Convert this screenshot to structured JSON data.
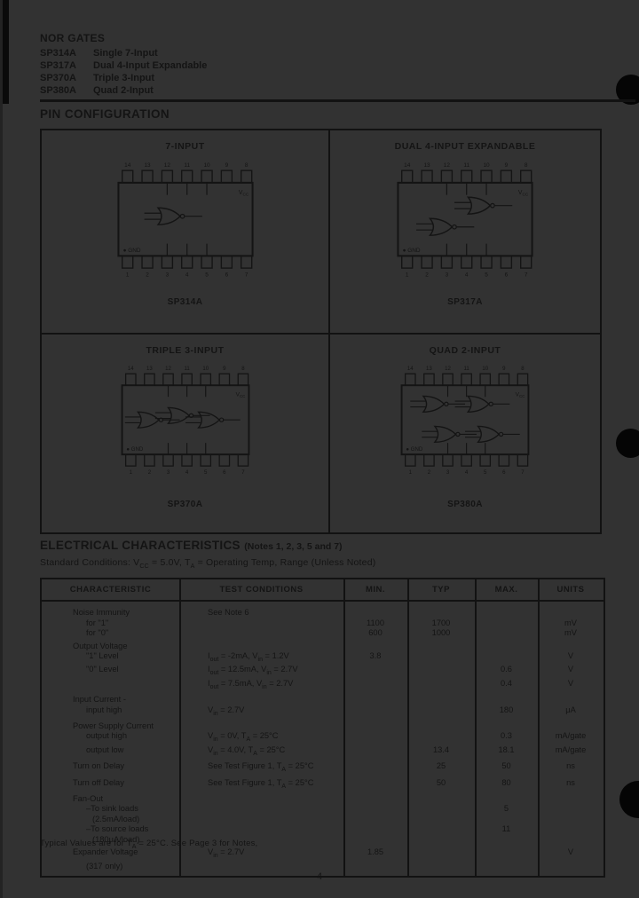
{
  "header": {
    "section_title": "NOR GATES",
    "parts": [
      {
        "number": "SP314A",
        "description": "Single 7-Input"
      },
      {
        "number": "SP317A",
        "description": "Dual 4-Input Expandable"
      },
      {
        "number": "SP370A",
        "description": "Triple 3-Input"
      },
      {
        "number": "SP380A",
        "description": "Quad 2-Input"
      }
    ]
  },
  "pin_configuration": {
    "title": "PIN CONFIGURATION",
    "diagrams": [
      {
        "title": "7-INPUT",
        "part_number": "SP314A",
        "gate_count": 1,
        "top_pins": [
          "14",
          "13",
          "12",
          "11",
          "10",
          "9",
          "8"
        ],
        "bottom_pins": [
          "1",
          "2",
          "3",
          "4",
          "5",
          "6",
          "7"
        ],
        "power_label": "V_{CC}",
        "ground_label": "GND"
      },
      {
        "title": "DUAL 4-INPUT EXPANDABLE",
        "part_number": "SP317A",
        "gate_count": 2,
        "top_pins": [
          "14",
          "13",
          "12",
          "11",
          "10",
          "9",
          "8"
        ],
        "bottom_pins": [
          "1",
          "2",
          "3",
          "4",
          "5",
          "6",
          "7"
        ],
        "power_label": "V_{CC}",
        "ground_label": "GND"
      },
      {
        "title": "TRIPLE 3-INPUT",
        "part_number": "SP370A",
        "gate_count": 3,
        "top_pins": [
          "14",
          "13",
          "12",
          "11",
          "10",
          "9",
          "8"
        ],
        "bottom_pins": [
          "1",
          "2",
          "3",
          "4",
          "5",
          "6",
          "7"
        ],
        "power_label": "V_{CC}",
        "ground_label": "GND"
      },
      {
        "title": "QUAD 2-INPUT",
        "part_number": "SP380A",
        "gate_count": 4,
        "top_pins": [
          "14",
          "13",
          "12",
          "11",
          "10",
          "9",
          "8"
        ],
        "bottom_pins": [
          "1",
          "2",
          "3",
          "4",
          "5",
          "6",
          "7"
        ],
        "power_label": "V_{CC}",
        "ground_label": "GND"
      }
    ]
  },
  "electrical": {
    "title": "ELECTRICAL CHARACTERISTICS",
    "title_notes": "(Notes 1, 2, 3, 5 and 7)",
    "conditions": "Standard Conditions:  V_{CC} = 5.0V, T_{A} = Operating Temp, Range (Unless Noted)",
    "table": {
      "headers": [
        "CHARACTERISTIC",
        "TEST CONDITIONS",
        "MIN.",
        "TYP",
        "MAX.",
        "UNITS"
      ],
      "rows": [
        {
          "characteristic": "Noise Immunity",
          "conditions": "See Note 6",
          "group": true
        },
        {
          "characteristic": "for \"1\"",
          "indent": 1,
          "min": "1100",
          "typ": "1700",
          "units": "mV"
        },
        {
          "characteristic": "for \"0\"",
          "indent": 1,
          "min": "600",
          "typ": "1000",
          "units": "mV"
        },
        {
          "characteristic": "Output Voltage",
          "group": true
        },
        {
          "characteristic": "\"1\" Level",
          "indent": 1,
          "conditions": "I_{out} = -2mA, V_{in} = 1.2V",
          "min": "3.8",
          "units": "V"
        },
        {
          "characteristic": "\"0\" Level",
          "indent": 1,
          "conditions": "I_{out} = 12.5mA, V_{in} = 2.7V",
          "max": "0.6",
          "units": "V"
        },
        {
          "characteristic": "",
          "conditions": "I_{out} = 7.5mA, V_{in} = 2.7V",
          "max": "0.4",
          "units": "V"
        },
        {
          "characteristic": "Input Current -",
          "group": true
        },
        {
          "characteristic": "input high",
          "indent": 1,
          "conditions": "V_{in} = 2.7V",
          "max": "180",
          "units": "μA"
        },
        {
          "characteristic": "Power Supply Current",
          "group": true
        },
        {
          "characteristic": "output high",
          "indent": 1,
          "conditions": "V_{in} = 0V, T_{A} = 25°C",
          "max": "0.3",
          "units": "mA/gate"
        },
        {
          "characteristic": "output low",
          "indent": 1,
          "conditions": "V_{in} = 4.0V, T_{A} = 25°C",
          "typ": "13.4",
          "max": "18.1",
          "units": "mA/gate"
        },
        {
          "characteristic": "Turn on Delay",
          "conditions": "See Test Figure 1, T_{A} = 25°C",
          "typ": "25",
          "max": "50",
          "units": "ns",
          "group": true
        },
        {
          "characteristic": "Turn off Delay",
          "conditions": "See Test Figure 1, T_{A} = 25°C",
          "typ": "50",
          "max": "80",
          "units": "ns",
          "group": true
        },
        {
          "characteristic": "Fan-Out",
          "group": true
        },
        {
          "characteristic": "–To sink loads",
          "indent": 1,
          "max": "5"
        },
        {
          "characteristic": "(2.5mA/load)",
          "indent": 2
        },
        {
          "characteristic": "–To source loads",
          "indent": 1,
          "max": "11"
        },
        {
          "characteristic": "(180μA/load)",
          "indent": 2
        },
        {
          "characteristic": "Expander Voltage",
          "conditions": "V_{in} = 2.7V",
          "min": "1.85",
          "units": "V",
          "group": true
        },
        {
          "characteristic": "(317 only)",
          "indent": 1
        }
      ]
    },
    "footnote": "Typical Values are for T_{A} = 25°C. See Page 3 for Notes,"
  },
  "page_number": "4"
}
